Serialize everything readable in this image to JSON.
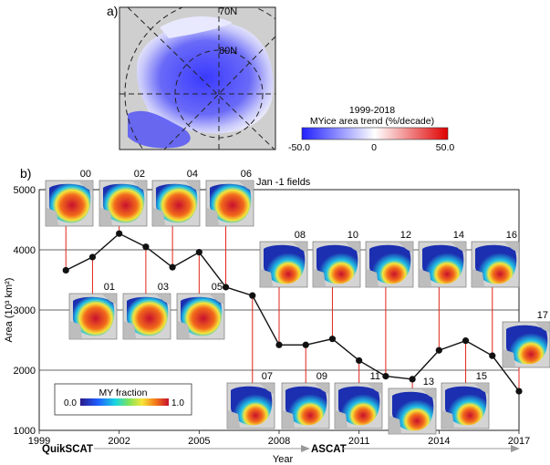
{
  "panel_a": {
    "label": "a)",
    "lat_labels": [
      "70N",
      "80N"
    ],
    "colorbar": {
      "title_line1": "1999-2018",
      "title_line2": "MYice  area trend (%/decade)",
      "min_label": "-50.0",
      "mid_label": "0",
      "max_label": "50.0",
      "colors": [
        "#2020ff",
        "#ffffff",
        "#e00000"
      ]
    }
  },
  "panel_b": {
    "label": "b)",
    "fields_label": "Jan -1 fields",
    "legend": {
      "title": "MY fraction",
      "min_label": "0.0",
      "max_label": "1.0"
    },
    "sensors": [
      "QuikSCAT",
      "ASCAT"
    ],
    "thumb_labels": [
      "00",
      "01",
      "02",
      "03",
      "04",
      "05",
      "06",
      "07",
      "08",
      "09",
      "10",
      "11",
      "12",
      "13",
      "14",
      "15",
      "16",
      "17"
    ]
  },
  "chart_data": {
    "type": "line",
    "xlabel": "Year",
    "ylabel": "Area (10³ km²)",
    "xlim": [
      1999,
      2017
    ],
    "ylim": [
      1000,
      5000
    ],
    "xticks": [
      1999,
      2002,
      2005,
      2008,
      2011,
      2014,
      2017
    ],
    "yticks": [
      1000,
      2000,
      3000,
      4000,
      5000
    ],
    "series": [
      {
        "x": [
          2000,
          2001,
          2002,
          2003,
          2004,
          2005,
          2006,
          2007,
          2008,
          2009,
          2010,
          2011,
          2012,
          2013,
          2014,
          2015,
          2016,
          2017
        ],
        "values": [
          3660,
          3880,
          4270,
          4050,
          3710,
          3960,
          3380,
          3240,
          2420,
          2420,
          2520,
          2160,
          1900,
          1850,
          2330,
          2490,
          2240,
          1650
        ]
      }
    ]
  }
}
